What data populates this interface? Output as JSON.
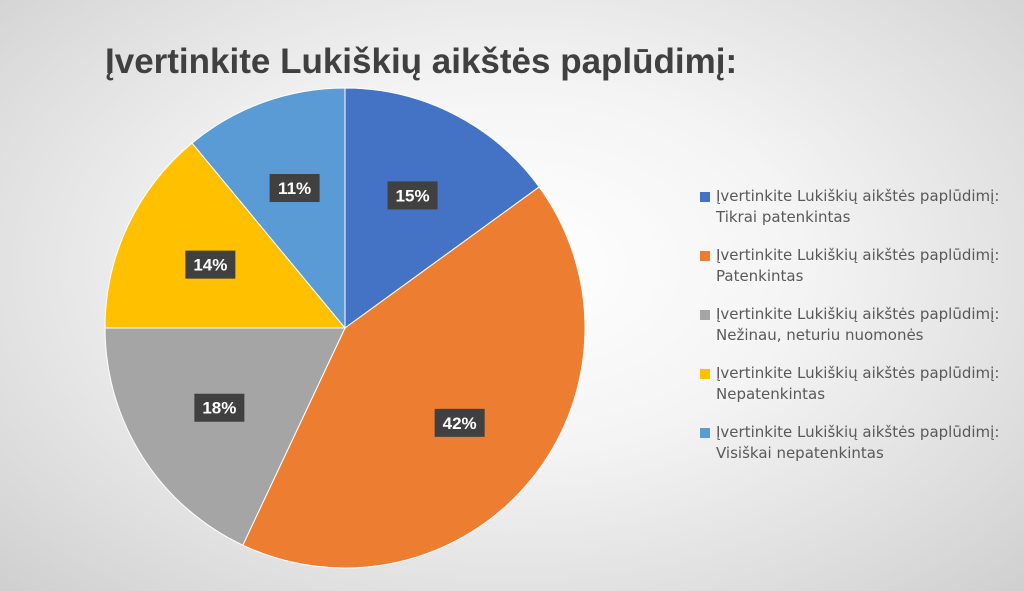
{
  "chart_data": {
    "type": "pie",
    "title": "Įvertinkite Lukiškių aikštės paplūdimį:",
    "slices": [
      {
        "label": "Įvertinkite Lukiškių aikštės paplūdimį: Tikrai patenkintas",
        "category": "Tikrai patenkintas",
        "value": 15,
        "display": "15%",
        "color": "#4472C4"
      },
      {
        "label": "Įvertinkite Lukiškių aikštės paplūdimį: Patenkintas",
        "category": "Patenkintas",
        "value": 42,
        "display": "42%",
        "color": "#ED7D31"
      },
      {
        "label": "Įvertinkite Lukiškių aikštės paplūdimį: Nežinau, neturiu nuomonės",
        "category": "Nežinau, neturiu nuomonės",
        "value": 18,
        "display": "18%",
        "color": "#A5A5A5"
      },
      {
        "label": "Įvertinkite Lukiškių aikštės paplūdimį: Nepatenkintas",
        "category": "Nepatenkintas",
        "value": 14,
        "display": "14%",
        "color": "#FFC000"
      },
      {
        "label": "Įvertinkite Lukiškių aikštės paplūdimį: Visiškai nepatenkintas",
        "category": "Visiškai nepatenkintas",
        "value": 11,
        "display": "11%",
        "color": "#5B9BD5"
      }
    ],
    "legend_position": "right",
    "data_label_style": "dark box, white bold text"
  },
  "legend": {
    "prefix": "Įvertinkite Lukiškių aikštės paplūdimį:",
    "items": [
      {
        "line1": "Įvertinkite Lukiškių aikštės paplūdimį:",
        "line2": "Tikrai patenkintas",
        "color": "#4472C4"
      },
      {
        "line1": "Įvertinkite Lukiškių aikštės paplūdimį:",
        "line2": "Patenkintas",
        "color": "#ED7D31"
      },
      {
        "line1": "Įvertinkite Lukiškių aikštės paplūdimį:",
        "line2": "Nežinau, neturiu nuomonės",
        "color": "#A5A5A5"
      },
      {
        "line1": "Įvertinkite Lukiškių aikštės paplūdimį:",
        "line2": "Nepatenkintas",
        "color": "#FFC000"
      },
      {
        "line1": "Įvertinkite Lukiškių aikštės paplūdimį:",
        "line2": "Visiškai nepatenkintas",
        "color": "#5B9BD5"
      }
    ]
  }
}
